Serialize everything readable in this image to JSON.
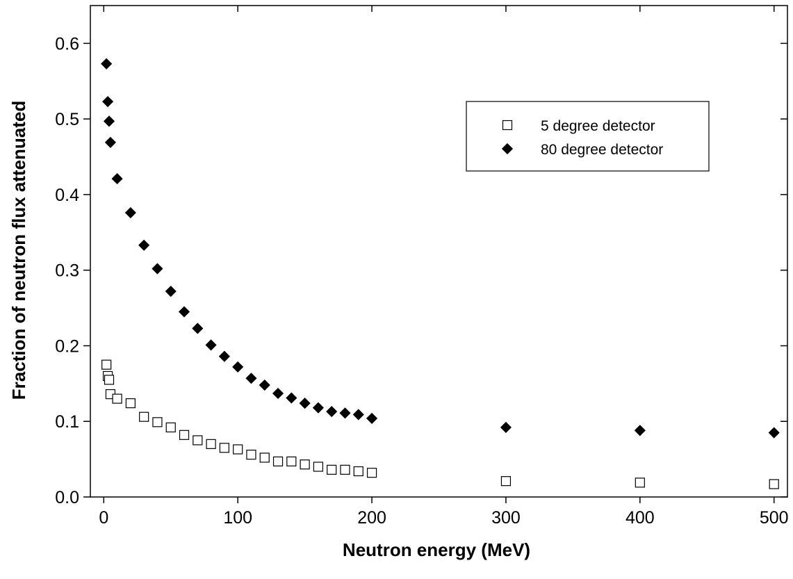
{
  "chart_data": {
    "type": "scatter",
    "title": "",
    "xlabel": "Neutron energy (MeV)",
    "ylabel": "Fraction of  neutron flux attenuated",
    "xlim": [
      -10,
      510
    ],
    "ylim": [
      0.0,
      0.65
    ],
    "x_ticks": [
      0,
      100,
      200,
      300,
      400,
      500
    ],
    "x_tick_labels": [
      "0",
      "100",
      "200",
      "300",
      "400",
      "500"
    ],
    "y_ticks": [
      0.0,
      0.1,
      0.2,
      0.3,
      0.4,
      0.5,
      0.6
    ],
    "y_tick_labels": [
      "0.0",
      "0.1",
      "0.2",
      "0.3",
      "0.4",
      "0.5",
      "0.6"
    ],
    "grid": false,
    "legend_position": "top-right",
    "series": [
      {
        "name": "5 degree detector",
        "marker": "open-square",
        "color": "#000000",
        "x": [
          2,
          3,
          4,
          5,
          10,
          20,
          30,
          40,
          50,
          60,
          70,
          80,
          90,
          100,
          110,
          120,
          130,
          140,
          150,
          160,
          170,
          180,
          190,
          200,
          300,
          400,
          500
        ],
        "y": [
          0.175,
          0.16,
          0.155,
          0.136,
          0.13,
          0.124,
          0.106,
          0.099,
          0.092,
          0.082,
          0.075,
          0.07,
          0.065,
          0.063,
          0.056,
          0.052,
          0.047,
          0.047,
          0.043,
          0.04,
          0.036,
          0.036,
          0.034,
          0.032,
          0.021,
          0.019,
          0.017
        ]
      },
      {
        "name": "80 degree detector",
        "marker": "filled-diamond",
        "color": "#000000",
        "x": [
          2,
          3,
          4,
          5,
          10,
          20,
          30,
          40,
          50,
          60,
          70,
          80,
          90,
          100,
          110,
          120,
          130,
          140,
          150,
          160,
          170,
          180,
          190,
          200,
          300,
          400,
          500
        ],
        "y": [
          0.573,
          0.523,
          0.497,
          0.469,
          0.421,
          0.376,
          0.333,
          0.302,
          0.272,
          0.245,
          0.223,
          0.201,
          0.186,
          0.172,
          0.157,
          0.148,
          0.137,
          0.131,
          0.124,
          0.118,
          0.113,
          0.111,
          0.109,
          0.104,
          0.092,
          0.088,
          0.085
        ]
      }
    ]
  }
}
